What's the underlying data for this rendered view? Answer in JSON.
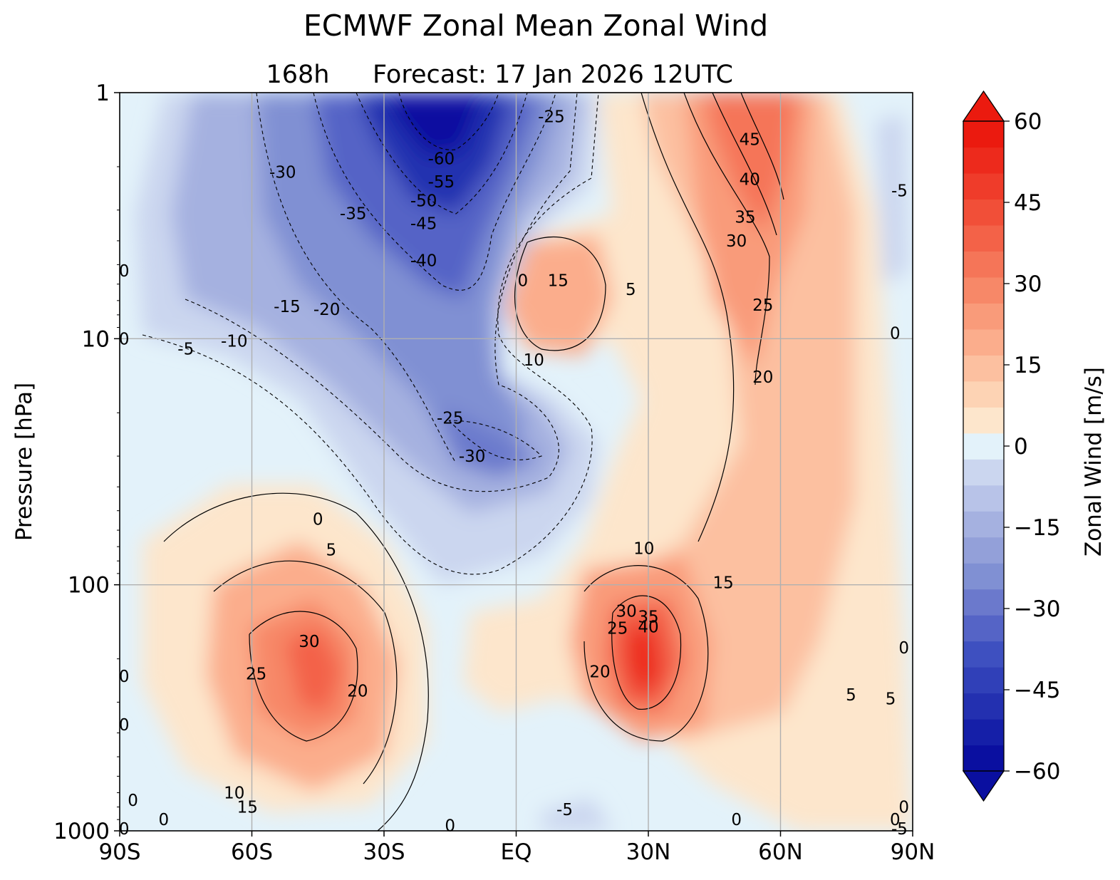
{
  "chart_data": {
    "type": "contour",
    "title": "ECMWF Zonal Mean Zonal Wind",
    "subtitle_lead": "168h",
    "subtitle_main": "Forecast:  17 Jan 2026  12UTC",
    "ylabel": "Pressure [hPa]",
    "xlabel": "",
    "x_ticks": [
      "90S",
      "60S",
      "30S",
      "EQ",
      "30N",
      "60N",
      "90N"
    ],
    "y_ticks": [
      "1",
      "10",
      "100",
      "1000"
    ],
    "y_scale": "log",
    "ylim": [
      1000,
      1
    ],
    "xlim": [
      -90,
      90
    ],
    "grid": true,
    "colorbar": {
      "label": "Zonal Wind [m/s]",
      "ticks": [
        "60",
        "45",
        "30",
        "15",
        "0",
        "−15",
        "−30",
        "−45",
        "−60"
      ],
      "min": -60,
      "max": 60,
      "step": 5,
      "extend": "both",
      "colors": [
        "#0a0fa0",
        "#151fa8",
        "#2330b0",
        "#3040b8",
        "#3e50c0",
        "#5564c6",
        "#6b79cc",
        "#8090d3",
        "#93a0d9",
        "#a5b1e0",
        "#b8c3e8",
        "#cbd6ef",
        "#e3f2fa",
        "#fde6cc",
        "#fdd3b4",
        "#fcc0a0",
        "#fbad8c",
        "#f99b7a",
        "#f78868",
        "#f57558",
        "#f36248",
        "#f14f38",
        "#ef3c2a",
        "#ed2a1c",
        "#eb1a0f"
      ]
    },
    "contour_labels": [
      {
        "text": "-25",
        "lat": 8,
        "p": 1.25
      },
      {
        "text": "-60",
        "lat": -17,
        "p": 1.85
      },
      {
        "text": "-55",
        "lat": -17,
        "p": 2.3
      },
      {
        "text": "-50",
        "lat": -21,
        "p": 2.75
      },
      {
        "text": "-45",
        "lat": -21,
        "p": 3.4
      },
      {
        "text": "-40",
        "lat": -21,
        "p": 4.8
      },
      {
        "text": "-35",
        "lat": -37,
        "p": 3.1
      },
      {
        "text": "-30",
        "lat": -53,
        "p": 2.1
      },
      {
        "text": "-20",
        "lat": -43,
        "p": 7.6
      },
      {
        "text": "-15",
        "lat": -52,
        "p": 7.4
      },
      {
        "text": "-10",
        "lat": -64,
        "p": 10.2
      },
      {
        "text": "-5",
        "lat": -75,
        "p": 11.0
      },
      {
        "text": "0",
        "lat": -89,
        "p": 5.3
      },
      {
        "text": "0",
        "lat": -89,
        "p": 10.0
      },
      {
        "text": "-25",
        "lat": -15,
        "p": 21
      },
      {
        "text": "-30",
        "lat": -10,
        "p": 30
      },
      {
        "text": "0",
        "lat": 1.5,
        "p": 5.8
      },
      {
        "text": "15",
        "lat": 9.5,
        "p": 5.8
      },
      {
        "text": "10",
        "lat": 4,
        "p": 12.2
      },
      {
        "text": "5",
        "lat": 26,
        "p": 6.3
      },
      {
        "text": "45",
        "lat": 53,
        "p": 1.55
      },
      {
        "text": "40",
        "lat": 53,
        "p": 2.25
      },
      {
        "text": "35",
        "lat": 52,
        "p": 3.2
      },
      {
        "text": "30",
        "lat": 50,
        "p": 4.0
      },
      {
        "text": "25",
        "lat": 56,
        "p": 7.3
      },
      {
        "text": "20",
        "lat": 56,
        "p": 14.3
      },
      {
        "text": "-5",
        "lat": 87,
        "p": 2.5
      },
      {
        "text": "0",
        "lat": 86,
        "p": 9.5
      },
      {
        "text": "0",
        "lat": -45,
        "p": 54
      },
      {
        "text": "5",
        "lat": -42,
        "p": 72
      },
      {
        "text": "10",
        "lat": 29,
        "p": 71
      },
      {
        "text": "15",
        "lat": 47,
        "p": 98
      },
      {
        "text": "30",
        "lat": -47,
        "p": 170
      },
      {
        "text": "25",
        "lat": -59,
        "p": 230
      },
      {
        "text": "20",
        "lat": -36,
        "p": 270
      },
      {
        "text": "35",
        "lat": 30,
        "p": 135
      },
      {
        "text": "30",
        "lat": 25,
        "p": 128
      },
      {
        "text": "40",
        "lat": 30,
        "p": 148
      },
      {
        "text": "25",
        "lat": 23,
        "p": 150
      },
      {
        "text": "20",
        "lat": 19,
        "p": 225
      },
      {
        "text": "0",
        "lat": -89,
        "p": 235
      },
      {
        "text": "0",
        "lat": -89,
        "p": 370
      },
      {
        "text": "10",
        "lat": -64,
        "p": 700
      },
      {
        "text": "15",
        "lat": -61,
        "p": 800
      },
      {
        "text": "0",
        "lat": -87,
        "p": 750
      },
      {
        "text": "0",
        "lat": -80,
        "p": 900
      },
      {
        "text": "0",
        "lat": -15,
        "p": 950
      },
      {
        "text": "-5",
        "lat": 11,
        "p": 820
      },
      {
        "text": "0",
        "lat": 50,
        "p": 900
      },
      {
        "text": "5",
        "lat": 76,
        "p": 280
      },
      {
        "text": "5",
        "lat": 85,
        "p": 290
      },
      {
        "text": "0",
        "lat": 88,
        "p": 180
      },
      {
        "text": "0",
        "lat": 88,
        "p": 800
      },
      {
        "text": "0",
        "lat": 86,
        "p": 900
      },
      {
        "text": "-5",
        "lat": 87,
        "p": 980
      },
      {
        "text": "0",
        "lat": -89,
        "p": 980
      }
    ]
  }
}
